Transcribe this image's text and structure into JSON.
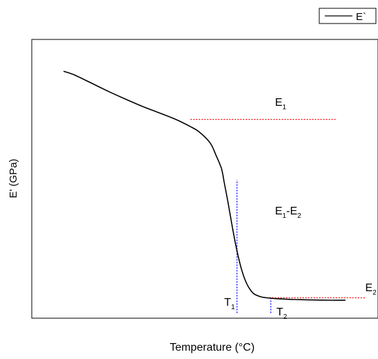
{
  "chart_data": {
    "type": "line",
    "xlabel": "Temperature (°C)",
    "ylabel": "E' (GPa)",
    "ticks": "none",
    "grid": false,
    "legend": {
      "position": "top-right",
      "entries": [
        "E`"
      ]
    },
    "series": [
      {
        "name": "E`",
        "color": "#000000",
        "x": [
          0.0,
          0.04,
          0.1,
          0.16,
          0.22,
          0.28,
          0.34,
          0.4,
          0.45,
          0.48,
          0.52,
          0.54,
          0.56,
          0.57,
          0.58,
          0.59,
          0.6,
          0.61,
          0.62,
          0.63,
          0.64,
          0.65,
          0.66,
          0.67,
          0.68,
          0.7,
          0.72,
          0.76,
          0.82,
          0.88,
          0.95,
          1.0
        ],
        "y": [
          0.974,
          0.958,
          0.924,
          0.89,
          0.858,
          0.828,
          0.801,
          0.773,
          0.744,
          0.723,
          0.676,
          0.627,
          0.57,
          0.51,
          0.45,
          0.384,
          0.318,
          0.256,
          0.202,
          0.156,
          0.119,
          0.091,
          0.07,
          0.055,
          0.046,
          0.037,
          0.033,
          0.029,
          0.026,
          0.024,
          0.023,
          0.023
        ]
      }
    ],
    "reference_lines": [
      {
        "orientation": "horizontal",
        "y": 0.774,
        "x_from": 0.45,
        "x_to": 0.97,
        "color": "#ff0000",
        "style": "dotted"
      },
      {
        "orientation": "horizontal",
        "y": 0.033,
        "x_from": 0.72,
        "x_to": 1.07,
        "color": "#ff0000",
        "style": "dotted"
      },
      {
        "orientation": "vertical",
        "x": 0.615,
        "y_from": -0.03,
        "y_to": 0.523,
        "color": "#0000ff",
        "style": "dotted"
      },
      {
        "orientation": "vertical",
        "x": 0.735,
        "y_from": -0.03,
        "y_to": 0.035,
        "color": "#0000ff",
        "style": "dotted"
      }
    ],
    "annotations": [
      {
        "id": "e1",
        "main": "E",
        "sub": "1",
        "x": 0.75,
        "y": 0.83
      },
      {
        "id": "e1e2",
        "main": "E",
        "sub": "1",
        "mid": "-E",
        "sub2": "2",
        "x": 0.75,
        "y": 0.38
      },
      {
        "id": "e2",
        "main": "E",
        "sub": "2",
        "x": 1.07,
        "y": 0.06
      },
      {
        "id": "t1",
        "main": "T",
        "sub": "1",
        "x": 0.57,
        "y": 0.0
      },
      {
        "id": "t2",
        "main": "T",
        "sub": "2",
        "x": 0.755,
        "y": -0.04
      }
    ]
  }
}
